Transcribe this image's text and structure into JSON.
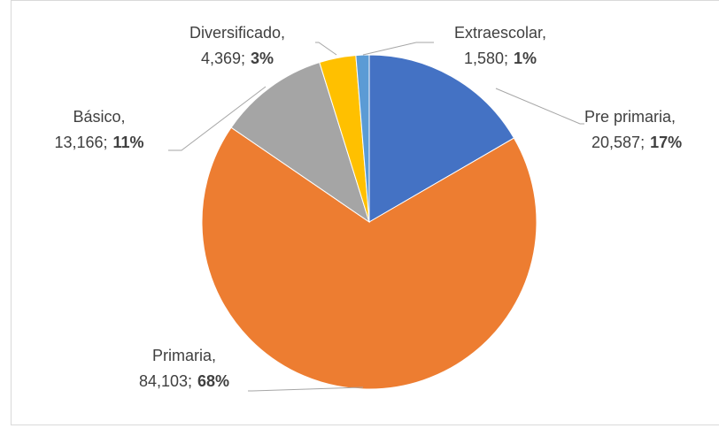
{
  "chart_data": {
    "type": "pie",
    "categories": [
      "Pre primaria",
      "Primaria",
      "Básico",
      "Diversificado",
      "Extraescolar"
    ],
    "values": [
      20587,
      84103,
      13166,
      4369,
      1580
    ],
    "value_labels": [
      "20,587",
      "84,103",
      "13,166",
      "4,369",
      "1,580"
    ],
    "percent_labels": [
      "17%",
      "68%",
      "11%",
      "3%",
      "1%"
    ],
    "name_separator": ",",
    "value_separator": ";",
    "colors": [
      "#4472c4",
      "#ed7d31",
      "#a5a5a5",
      "#ffc000",
      "#5b9bd5"
    ]
  }
}
